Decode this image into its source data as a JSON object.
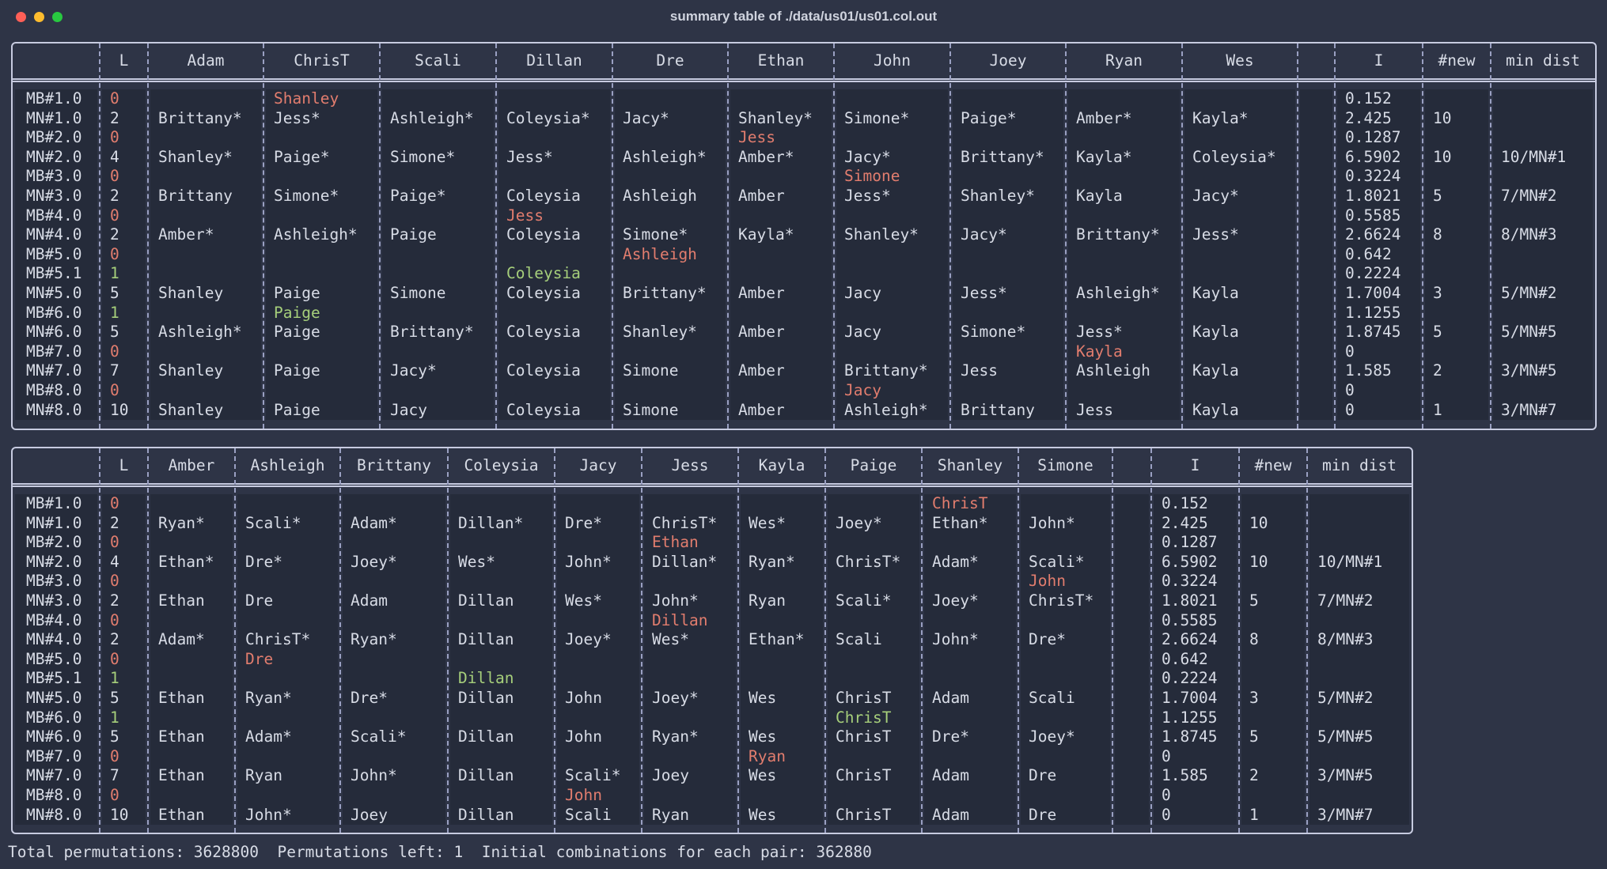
{
  "window": {
    "title": "summary table of ./data/us01/us01.col.out",
    "buttons": {
      "close": "#ff5f57",
      "minimize": "#febc2e",
      "maximize": "#28c840"
    }
  },
  "colors": {
    "matchbox_zero": "#e27d6e",
    "matchbox_one": "#a6cf7b",
    "text": "#d8dce6",
    "background": "#2e3446"
  },
  "table1": {
    "headers": [
      "",
      "L",
      "Adam",
      "ChrisT",
      "Scali",
      "Dillan",
      "Dre",
      "Ethan",
      "John",
      "Joey",
      "Ryan",
      "Wes",
      "",
      "I",
      "#new",
      "min dist"
    ],
    "rows": [
      {
        "label": "MB#1.0",
        "l": "0",
        "cells": [
          "",
          "Shanley",
          "",
          "",
          "",
          "",
          "",
          "",
          "",
          ""
        ],
        "i": "0.152",
        "new": "",
        "dist": ""
      },
      {
        "label": "MN#1.0",
        "l": "2",
        "cells": [
          "Brittany*",
          "Jess*",
          "Ashleigh*",
          "Coleysia*",
          "Jacy*",
          "Shanley*",
          "Simone*",
          "Paige*",
          "Amber*",
          "Kayla*"
        ],
        "i": "2.425",
        "new": "10",
        "dist": ""
      },
      {
        "label": "MB#2.0",
        "l": "0",
        "cells": [
          "",
          "",
          "",
          "",
          "",
          "Jess",
          "",
          "",
          "",
          ""
        ],
        "i": "0.1287",
        "new": "",
        "dist": ""
      },
      {
        "label": "MN#2.0",
        "l": "4",
        "cells": [
          "Shanley*",
          "Paige*",
          "Simone*",
          "Jess*",
          "Ashleigh*",
          "Amber*",
          "Jacy*",
          "Brittany*",
          "Kayla*",
          "Coleysia*"
        ],
        "i": "6.5902",
        "new": "10",
        "dist": "10/MN#1"
      },
      {
        "label": "MB#3.0",
        "l": "0",
        "cells": [
          "",
          "",
          "",
          "",
          "",
          "",
          "Simone",
          "",
          "",
          ""
        ],
        "i": "0.3224",
        "new": "",
        "dist": ""
      },
      {
        "label": "MN#3.0",
        "l": "2",
        "cells": [
          "Brittany",
          "Simone*",
          "Paige*",
          "Coleysia",
          "Ashleigh",
          "Amber",
          "Jess*",
          "Shanley*",
          "Kayla",
          "Jacy*"
        ],
        "i": "1.8021",
        "new": "5",
        "dist": "7/MN#2"
      },
      {
        "label": "MB#4.0",
        "l": "0",
        "cells": [
          "",
          "",
          "",
          "Jess",
          "",
          "",
          "",
          "",
          "",
          ""
        ],
        "i": "0.5585",
        "new": "",
        "dist": ""
      },
      {
        "label": "MN#4.0",
        "l": "2",
        "cells": [
          "Amber*",
          "Ashleigh*",
          "Paige",
          "Coleysia",
          "Simone*",
          "Kayla*",
          "Shanley*",
          "Jacy*",
          "Brittany*",
          "Jess*"
        ],
        "i": "2.6624",
        "new": "8",
        "dist": "8/MN#3"
      },
      {
        "label": "MB#5.0",
        "l": "0",
        "cells": [
          "",
          "",
          "",
          "",
          "Ashleigh",
          "",
          "",
          "",
          "",
          ""
        ],
        "i": "0.642",
        "new": "",
        "dist": ""
      },
      {
        "label": "MB#5.1",
        "l": "1",
        "cells": [
          "",
          "",
          "",
          "Coleysia",
          "",
          "",
          "",
          "",
          "",
          ""
        ],
        "i": "0.2224",
        "new": "",
        "dist": ""
      },
      {
        "label": "MN#5.0",
        "l": "5",
        "cells": [
          "Shanley",
          "Paige",
          "Simone",
          "Coleysia",
          "Brittany*",
          "Amber",
          "Jacy",
          "Jess*",
          "Ashleigh*",
          "Kayla"
        ],
        "i": "1.7004",
        "new": "3",
        "dist": "5/MN#2"
      },
      {
        "label": "MB#6.0",
        "l": "1",
        "cells": [
          "",
          "Paige",
          "",
          "",
          "",
          "",
          "",
          "",
          "",
          ""
        ],
        "i": "1.1255",
        "new": "",
        "dist": ""
      },
      {
        "label": "MN#6.0",
        "l": "5",
        "cells": [
          "Ashleigh*",
          "Paige",
          "Brittany*",
          "Coleysia",
          "Shanley*",
          "Amber",
          "Jacy",
          "Simone*",
          "Jess*",
          "Kayla"
        ],
        "i": "1.8745",
        "new": "5",
        "dist": "5/MN#5"
      },
      {
        "label": "MB#7.0",
        "l": "0",
        "cells": [
          "",
          "",
          "",
          "",
          "",
          "",
          "",
          "",
          "Kayla",
          ""
        ],
        "i": "0",
        "new": "",
        "dist": ""
      },
      {
        "label": "MN#7.0",
        "l": "7",
        "cells": [
          "Shanley",
          "Paige",
          "Jacy*",
          "Coleysia",
          "Simone",
          "Amber",
          "Brittany*",
          "Jess",
          "Ashleigh",
          "Kayla"
        ],
        "i": "1.585",
        "new": "2",
        "dist": "3/MN#5"
      },
      {
        "label": "MB#8.0",
        "l": "0",
        "cells": [
          "",
          "",
          "",
          "",
          "",
          "",
          "Jacy",
          "",
          "",
          ""
        ],
        "i": "0",
        "new": "",
        "dist": ""
      },
      {
        "label": "MN#8.0",
        "l": "10",
        "cells": [
          "Shanley",
          "Paige",
          "Jacy",
          "Coleysia",
          "Simone",
          "Amber",
          "Ashleigh*",
          "Brittany",
          "Jess",
          "Kayla"
        ],
        "i": "0",
        "new": "1",
        "dist": "3/MN#7"
      }
    ]
  },
  "table2": {
    "headers": [
      "",
      "L",
      "Amber",
      "Ashleigh",
      "Brittany",
      "Coleysia",
      "Jacy",
      "Jess",
      "Kayla",
      "Paige",
      "Shanley",
      "Simone",
      "",
      "I",
      "#new",
      "min dist"
    ],
    "rows": [
      {
        "label": "MB#1.0",
        "l": "0",
        "cells": [
          "",
          "",
          "",
          "",
          "",
          "",
          "",
          "",
          "ChrisT",
          ""
        ],
        "i": "0.152",
        "new": "",
        "dist": ""
      },
      {
        "label": "MN#1.0",
        "l": "2",
        "cells": [
          "Ryan*",
          "Scali*",
          "Adam*",
          "Dillan*",
          "Dre*",
          "ChrisT*",
          "Wes*",
          "Joey*",
          "Ethan*",
          "John*"
        ],
        "i": "2.425",
        "new": "10",
        "dist": ""
      },
      {
        "label": "MB#2.0",
        "l": "0",
        "cells": [
          "",
          "",
          "",
          "",
          "",
          "Ethan",
          "",
          "",
          "",
          ""
        ],
        "i": "0.1287",
        "new": "",
        "dist": ""
      },
      {
        "label": "MN#2.0",
        "l": "4",
        "cells": [
          "Ethan*",
          "Dre*",
          "Joey*",
          "Wes*",
          "John*",
          "Dillan*",
          "Ryan*",
          "ChrisT*",
          "Adam*",
          "Scali*"
        ],
        "i": "6.5902",
        "new": "10",
        "dist": "10/MN#1"
      },
      {
        "label": "MB#3.0",
        "l": "0",
        "cells": [
          "",
          "",
          "",
          "",
          "",
          "",
          "",
          "",
          "",
          "John"
        ],
        "i": "0.3224",
        "new": "",
        "dist": ""
      },
      {
        "label": "MN#3.0",
        "l": "2",
        "cells": [
          "Ethan",
          "Dre",
          "Adam",
          "Dillan",
          "Wes*",
          "John*",
          "Ryan",
          "Scali*",
          "Joey*",
          "ChrisT*"
        ],
        "i": "1.8021",
        "new": "5",
        "dist": "7/MN#2"
      },
      {
        "label": "MB#4.0",
        "l": "0",
        "cells": [
          "",
          "",
          "",
          "",
          "",
          "Dillan",
          "",
          "",
          "",
          ""
        ],
        "i": "0.5585",
        "new": "",
        "dist": ""
      },
      {
        "label": "MN#4.0",
        "l": "2",
        "cells": [
          "Adam*",
          "ChrisT*",
          "Ryan*",
          "Dillan",
          "Joey*",
          "Wes*",
          "Ethan*",
          "Scali",
          "John*",
          "Dre*"
        ],
        "i": "2.6624",
        "new": "8",
        "dist": "8/MN#3"
      },
      {
        "label": "MB#5.0",
        "l": "0",
        "cells": [
          "",
          "Dre",
          "",
          "",
          "",
          "",
          "",
          "",
          "",
          ""
        ],
        "i": "0.642",
        "new": "",
        "dist": ""
      },
      {
        "label": "MB#5.1",
        "l": "1",
        "cells": [
          "",
          "",
          "",
          "Dillan",
          "",
          "",
          "",
          "",
          "",
          ""
        ],
        "i": "0.2224",
        "new": "",
        "dist": ""
      },
      {
        "label": "MN#5.0",
        "l": "5",
        "cells": [
          "Ethan",
          "Ryan*",
          "Dre*",
          "Dillan",
          "John",
          "Joey*",
          "Wes",
          "ChrisT",
          "Adam",
          "Scali"
        ],
        "i": "1.7004",
        "new": "3",
        "dist": "5/MN#2"
      },
      {
        "label": "MB#6.0",
        "l": "1",
        "cells": [
          "",
          "",
          "",
          "",
          "",
          "",
          "",
          "ChrisT",
          "",
          ""
        ],
        "i": "1.1255",
        "new": "",
        "dist": ""
      },
      {
        "label": "MN#6.0",
        "l": "5",
        "cells": [
          "Ethan",
          "Adam*",
          "Scali*",
          "Dillan",
          "John",
          "Ryan*",
          "Wes",
          "ChrisT",
          "Dre*",
          "Joey*"
        ],
        "i": "1.8745",
        "new": "5",
        "dist": "5/MN#5"
      },
      {
        "label": "MB#7.0",
        "l": "0",
        "cells": [
          "",
          "",
          "",
          "",
          "",
          "",
          "Ryan",
          "",
          "",
          ""
        ],
        "i": "0",
        "new": "",
        "dist": ""
      },
      {
        "label": "MN#7.0",
        "l": "7",
        "cells": [
          "Ethan",
          "Ryan",
          "John*",
          "Dillan",
          "Scali*",
          "Joey",
          "Wes",
          "ChrisT",
          "Adam",
          "Dre"
        ],
        "i": "1.585",
        "new": "2",
        "dist": "3/MN#5"
      },
      {
        "label": "MB#8.0",
        "l": "0",
        "cells": [
          "",
          "",
          "",
          "",
          "John",
          "",
          "",
          "",
          "",
          ""
        ],
        "i": "0",
        "new": "",
        "dist": ""
      },
      {
        "label": "MN#8.0",
        "l": "10",
        "cells": [
          "Ethan",
          "John*",
          "Joey",
          "Dillan",
          "Scali",
          "Ryan",
          "Wes",
          "ChrisT",
          "Adam",
          "Dre"
        ],
        "i": "0",
        "new": "1",
        "dist": "3/MN#7"
      }
    ]
  },
  "footer": {
    "text": "Total permutations: 3628800  Permutations left: 1  Initial combinations for each pair: 362880"
  }
}
